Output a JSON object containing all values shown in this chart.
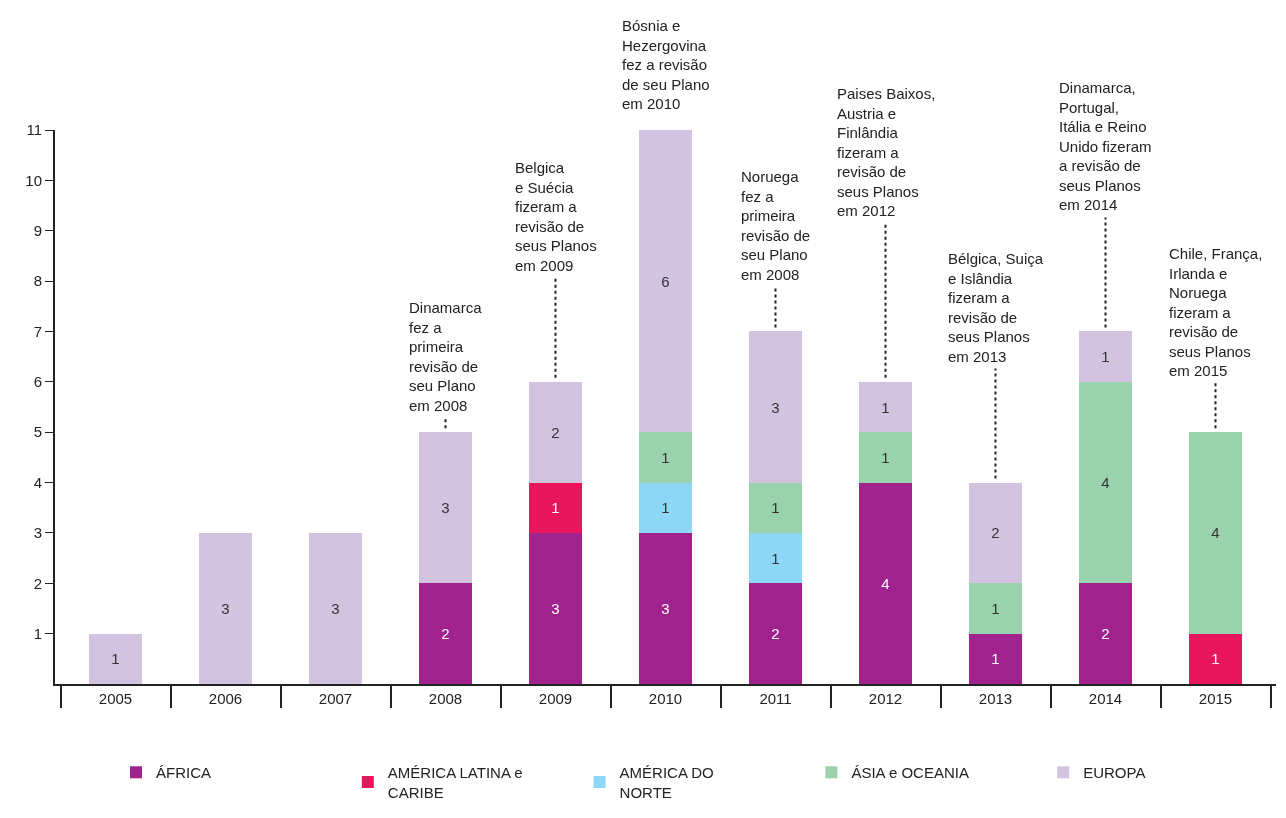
{
  "chart_data": {
    "type": "bar",
    "stacked": true,
    "data_labels": true,
    "legend": "bottom",
    "categories": [
      "2005",
      "2006",
      "2007",
      "2008",
      "2009",
      "2010",
      "2011",
      "2012",
      "2013",
      "2014",
      "2015"
    ],
    "ylim": [
      0,
      11
    ],
    "yticks": [
      1,
      2,
      3,
      4,
      5,
      6,
      7,
      8,
      9,
      10,
      11
    ],
    "series": [
      {
        "name": "ÁFRICA",
        "color": "#a0228c",
        "values": [
          null,
          null,
          null,
          2,
          3,
          3,
          2,
          4,
          1,
          2,
          null
        ]
      },
      {
        "name": "AMÉRICA LATINA e\nCARIBE",
        "color": "#e8175d",
        "values": [
          null,
          null,
          null,
          null,
          1,
          null,
          null,
          null,
          null,
          null,
          1
        ]
      },
      {
        "name": "AMÉRICA DO\nNORTE",
        "color": "#8dd7f7",
        "values": [
          null,
          null,
          null,
          null,
          null,
          1,
          1,
          null,
          null,
          null,
          null
        ]
      },
      {
        "name": "ÁSIA e OCEANIA",
        "color": "#9ad2ae",
        "values": [
          null,
          null,
          null,
          null,
          null,
          1,
          1,
          1,
          1,
          4,
          4
        ]
      },
      {
        "name": "EUROPA",
        "color": "#d2c4e1",
        "values": [
          1,
          3,
          3,
          3,
          2,
          6,
          3,
          1,
          2,
          1,
          null
        ]
      }
    ],
    "annotations": [
      {
        "text": "Dinamarca\nfez a\nprimeira\nrevisão de\nseu Plano\nem 2008",
        "x": "2008",
        "y": 5
      },
      {
        "text": "Belgica\ne Suécia\nfizeram a\nrevisão de\nseus Planos\nem 2009",
        "x": "2009",
        "y": 6
      },
      {
        "text": "Bósnia e\nHezergovina\nfez a revisão\nde seu Plano\nem 2010",
        "x": "2010",
        "y": 11
      },
      {
        "text": "Noruega\nfez a\nprimeira\nrevisão de\nseu Plano\nem 2008",
        "x": "2011",
        "y": 7
      },
      {
        "text": "Paises Baixos,\nAustria e\nFinlândia\nfizeram a\nrevisão de\nseus Planos\nem 2012",
        "x": "2012",
        "y": 6
      },
      {
        "text": "Bélgica, Suiça\ne Islândia\nfizeram a\nrevisão de\nseus Planos\nem 2013",
        "x": "2013",
        "y": 4
      },
      {
        "text": "Dinamarca,\nPortugal,\nItália e Reino\nUnido fizeram\na revisão de\nseus Planos\nem 2014",
        "x": "2014",
        "y": 7
      },
      {
        "text": "Chile, França,\nIrlanda e\nNoruega\nfizeram a\nrevisão de\nseus Planos\nem 2015",
        "x": "2015",
        "y": 5
      }
    ]
  }
}
